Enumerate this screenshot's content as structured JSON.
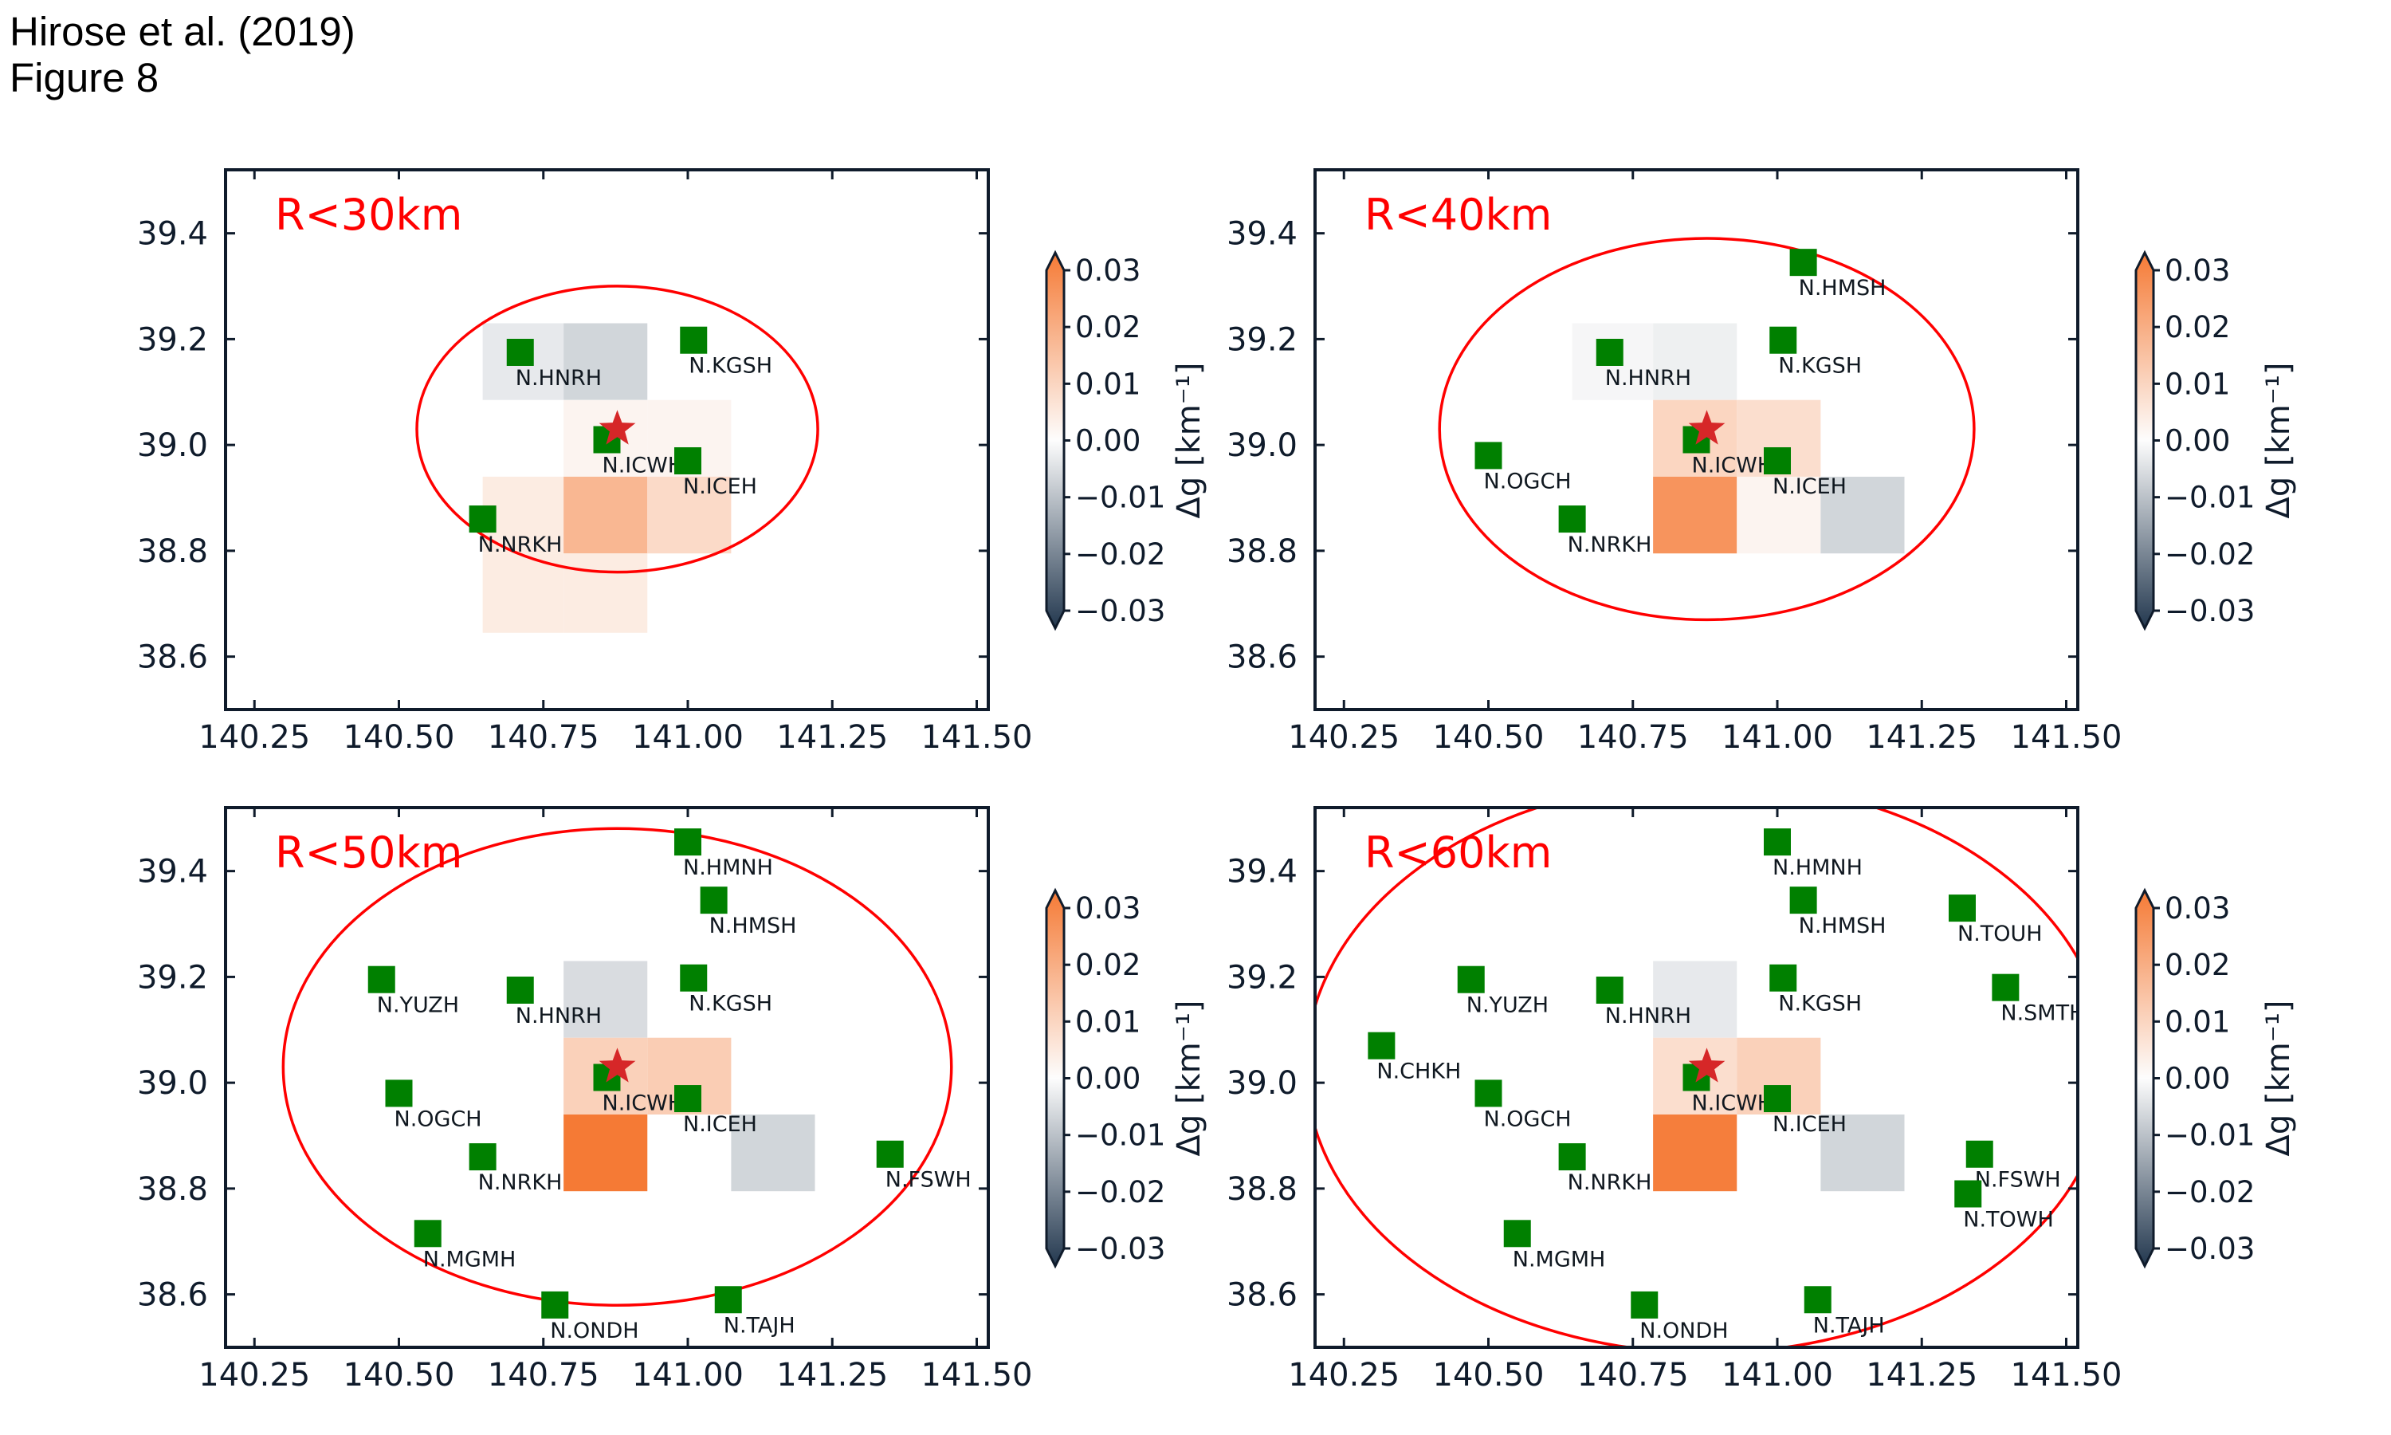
{
  "figure": {
    "header_line1": "Hirose et al. (2019)",
    "header_line2": "Figure 8"
  },
  "colors": {
    "station": "#008000",
    "star": "#d62728",
    "circle": "#ff0000",
    "panel_label": "#ff0000",
    "axes": "#0f1b2b",
    "cmap_low": "#23384f",
    "cmap_mid": "#fdfdfd",
    "cmap_high": "#f57a35"
  },
  "stations": {
    "N.HNRH": [
      140.71,
      39.175
    ],
    "N.KGSH": [
      141.01,
      39.198
    ],
    "N.ICWH": [
      140.86,
      39.01
    ],
    "N.ICEH": [
      141.0,
      38.97
    ],
    "N.NRKH": [
      140.645,
      38.86
    ],
    "N.HMSH": [
      141.045,
      39.345
    ],
    "N.OGCH": [
      140.5,
      38.98
    ],
    "N.HMNH": [
      141.0,
      39.455
    ],
    "N.YUZH": [
      140.47,
      39.195
    ],
    "N.FSWH": [
      141.35,
      38.865
    ],
    "N.MGMH": [
      140.55,
      38.715
    ],
    "N.ONDH": [
      140.77,
      38.58
    ],
    "N.TAJH": [
      141.07,
      38.59
    ],
    "N.TOUH": [
      141.32,
      39.33
    ],
    "N.SMTH": [
      141.395,
      39.18
    ],
    "N.CHKH": [
      140.315,
      39.07
    ],
    "N.TOWH": [
      141.33,
      38.79
    ]
  },
  "chart_data": [
    {
      "type": "heatmap",
      "panel_label": "R<30km",
      "xlim": [
        140.2,
        141.52
      ],
      "ylim": [
        38.5,
        39.52
      ],
      "xticks": [
        "140.25",
        "140.50",
        "140.75",
        "141.00",
        "141.25",
        "141.50"
      ],
      "yticks": [
        "38.6",
        "38.8",
        "39.0",
        "39.2",
        "39.4"
      ],
      "epicenter": [
        140.878,
        39.03
      ],
      "radius_km": 30,
      "cells": [
        {
          "x": [
            140.645,
            140.785
          ],
          "y": [
            39.085,
            39.23
          ],
          "value": -0.003
        },
        {
          "x": [
            140.785,
            140.93
          ],
          "y": [
            39.085,
            39.23
          ],
          "value": -0.006
        },
        {
          "x": [
            140.785,
            140.93
          ],
          "y": [
            38.94,
            39.085
          ],
          "value": 0.002
        },
        {
          "x": [
            140.93,
            141.075
          ],
          "y": [
            38.94,
            39.085
          ],
          "value": 0.002
        },
        {
          "x": [
            140.645,
            140.785
          ],
          "y": [
            38.795,
            38.94
          ],
          "value": 0.004
        },
        {
          "x": [
            140.785,
            140.93
          ],
          "y": [
            38.795,
            38.94
          ],
          "value": 0.016
        },
        {
          "x": [
            140.93,
            141.075
          ],
          "y": [
            38.795,
            38.94
          ],
          "value": 0.008
        },
        {
          "x": [
            140.645,
            140.785
          ],
          "y": [
            38.645,
            38.795
          ],
          "value": 0.004
        },
        {
          "x": [
            140.785,
            140.93
          ],
          "y": [
            38.645,
            38.795
          ],
          "value": 0.004
        }
      ],
      "stations": [
        "N.HNRH",
        "N.KGSH",
        "N.ICWH",
        "N.ICEH",
        "N.NRKH"
      ],
      "colorbar": {
        "label": "Δg [km⁻¹]",
        "ticks": [
          "0.03",
          "0.02",
          "0.01",
          "0.00",
          "−0.01",
          "−0.02",
          "−0.03"
        ],
        "range": [
          -0.03,
          0.03
        ]
      }
    },
    {
      "type": "heatmap",
      "panel_label": "R<40km",
      "xlim": [
        140.2,
        141.52
      ],
      "ylim": [
        38.5,
        39.52
      ],
      "xticks": [
        "140.25",
        "140.50",
        "140.75",
        "141.00",
        "141.25",
        "141.50"
      ],
      "yticks": [
        "38.6",
        "38.8",
        "39.0",
        "39.2",
        "39.4"
      ],
      "epicenter": [
        140.878,
        39.03
      ],
      "radius_km": 40,
      "cells": [
        {
          "x": [
            140.645,
            140.785
          ],
          "y": [
            39.085,
            39.23
          ],
          "value": -0.001
        },
        {
          "x": [
            140.785,
            140.93
          ],
          "y": [
            39.085,
            39.23
          ],
          "value": -0.002
        },
        {
          "x": [
            140.785,
            140.93
          ],
          "y": [
            38.94,
            39.085
          ],
          "value": 0.009
        },
        {
          "x": [
            140.93,
            141.075
          ],
          "y": [
            38.94,
            39.085
          ],
          "value": 0.007
        },
        {
          "x": [
            140.785,
            140.93
          ],
          "y": [
            38.795,
            38.94
          ],
          "value": 0.024
        },
        {
          "x": [
            140.93,
            141.075
          ],
          "y": [
            38.795,
            38.94
          ],
          "value": 0.002
        },
        {
          "x": [
            141.075,
            141.22
          ],
          "y": [
            38.795,
            38.94
          ],
          "value": -0.006
        }
      ],
      "stations": [
        "N.HMSH",
        "N.HNRH",
        "N.KGSH",
        "N.ICWH",
        "N.OGCH",
        "N.ICEH",
        "N.NRKH"
      ],
      "colorbar": {
        "label": "Δg [km⁻¹]",
        "ticks": [
          "0.03",
          "0.02",
          "0.01",
          "0.00",
          "−0.01",
          "−0.02",
          "−0.03"
        ],
        "range": [
          -0.03,
          0.03
        ]
      }
    },
    {
      "type": "heatmap",
      "panel_label": "R<50km",
      "xlim": [
        140.2,
        141.52
      ],
      "ylim": [
        38.5,
        39.52
      ],
      "xticks": [
        "140.25",
        "140.50",
        "140.75",
        "141.00",
        "141.25",
        "141.50"
      ],
      "yticks": [
        "38.6",
        "38.8",
        "39.0",
        "39.2",
        "39.4"
      ],
      "epicenter": [
        140.878,
        39.03
      ],
      "radius_km": 50,
      "cells": [
        {
          "x": [
            140.785,
            140.93
          ],
          "y": [
            39.085,
            39.23
          ],
          "value": -0.005
        },
        {
          "x": [
            140.785,
            140.93
          ],
          "y": [
            38.94,
            39.085
          ],
          "value": 0.01
        },
        {
          "x": [
            140.93,
            141.075
          ],
          "y": [
            38.94,
            39.085
          ],
          "value": 0.011
        },
        {
          "x": [
            140.785,
            140.93
          ],
          "y": [
            38.795,
            38.94
          ],
          "value": 0.03
        },
        {
          "x": [
            141.075,
            141.22
          ],
          "y": [
            38.795,
            38.94
          ],
          "value": -0.006
        }
      ],
      "stations": [
        "N.HMNH",
        "N.HMSH",
        "N.YUZH",
        "N.HNRH",
        "N.KGSH",
        "N.ICWH",
        "N.OGCH",
        "N.ICEH",
        "N.NRKH",
        "N.FSWH",
        "N.MGMH",
        "N.ONDH",
        "N.TAJH"
      ],
      "colorbar": {
        "label": "Δg [km⁻¹]",
        "ticks": [
          "0.03",
          "0.02",
          "0.01",
          "0.00",
          "−0.01",
          "−0.02",
          "−0.03"
        ],
        "range": [
          -0.03,
          0.03
        ]
      }
    },
    {
      "type": "heatmap",
      "panel_label": "R<60km",
      "xlim": [
        140.2,
        141.52
      ],
      "ylim": [
        38.5,
        39.52
      ],
      "xticks": [
        "140.25",
        "140.50",
        "140.75",
        "141.00",
        "141.25",
        "141.50"
      ],
      "yticks": [
        "38.6",
        "38.8",
        "39.0",
        "39.2",
        "39.4"
      ],
      "epicenter": [
        140.878,
        39.03
      ],
      "radius_km": 60,
      "cells": [
        {
          "x": [
            140.785,
            140.93
          ],
          "y": [
            39.085,
            39.23
          ],
          "value": -0.003
        },
        {
          "x": [
            140.785,
            140.93
          ],
          "y": [
            38.94,
            39.085
          ],
          "value": 0.007
        },
        {
          "x": [
            140.93,
            141.075
          ],
          "y": [
            38.94,
            39.085
          ],
          "value": 0.01
        },
        {
          "x": [
            140.785,
            140.93
          ],
          "y": [
            38.795,
            38.94
          ],
          "value": 0.029
        },
        {
          "x": [
            141.075,
            141.22
          ],
          "y": [
            38.795,
            38.94
          ],
          "value": -0.006
        }
      ],
      "stations": [
        "N.HMNH",
        "N.HMSH",
        "N.TOUH",
        "N.YUZH",
        "N.HNRH",
        "N.KGSH",
        "N.SMTH",
        "N.CHKH",
        "N.ICWH",
        "N.OGCH",
        "N.ICEH",
        "N.NRKH",
        "N.FSWH",
        "N.TOWH",
        "N.MGMH",
        "N.ONDH",
        "N.TAJH"
      ],
      "colorbar": {
        "label": "Δg [km⁻¹]",
        "ticks": [
          "0.03",
          "0.02",
          "0.01",
          "0.00",
          "−0.01",
          "−0.02",
          "−0.03"
        ],
        "range": [
          -0.03,
          0.03
        ]
      }
    }
  ]
}
